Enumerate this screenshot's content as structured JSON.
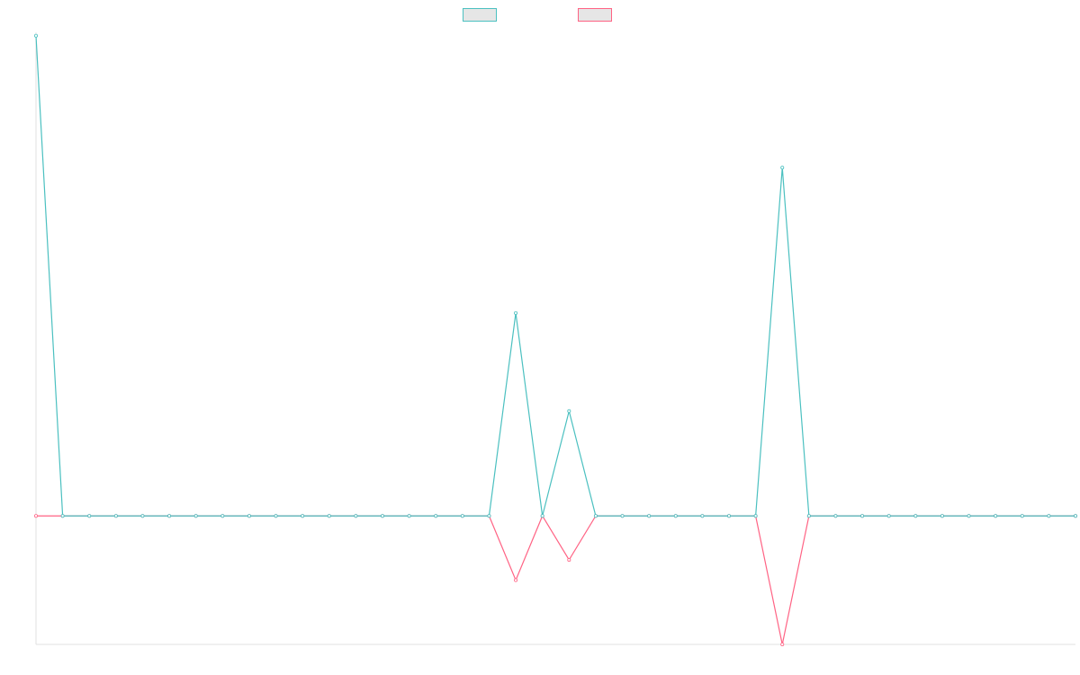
{
  "chart_data": {
    "type": "line",
    "title": "",
    "xlabel": "",
    "ylabel": "",
    "legend_position": "top",
    "grid": false,
    "x_count": 40,
    "ylim": [
      -1.9,
      7.15
    ],
    "series": [
      {
        "name": "",
        "color": "#4bc0c0",
        "values": [
          7.1,
          0,
          0,
          0,
          0,
          0,
          0,
          0,
          0,
          0,
          0,
          0,
          0,
          0,
          0,
          0,
          0,
          0,
          3.0,
          0,
          1.55,
          0,
          0,
          0,
          0,
          0,
          0,
          0,
          5.15,
          0,
          0,
          0,
          0,
          0,
          0,
          0,
          0,
          0,
          0,
          0
        ]
      },
      {
        "name": "",
        "color": "#ff6384",
        "values": [
          0,
          0,
          0,
          0,
          0,
          0,
          0,
          0,
          0,
          0,
          0,
          0,
          0,
          0,
          0,
          0,
          0,
          0,
          -0.95,
          0,
          -0.65,
          0,
          0,
          0,
          0,
          0,
          0,
          0,
          -1.9,
          0,
          0,
          0,
          0,
          0,
          0,
          0,
          0,
          0,
          0,
          0
        ]
      }
    ]
  }
}
